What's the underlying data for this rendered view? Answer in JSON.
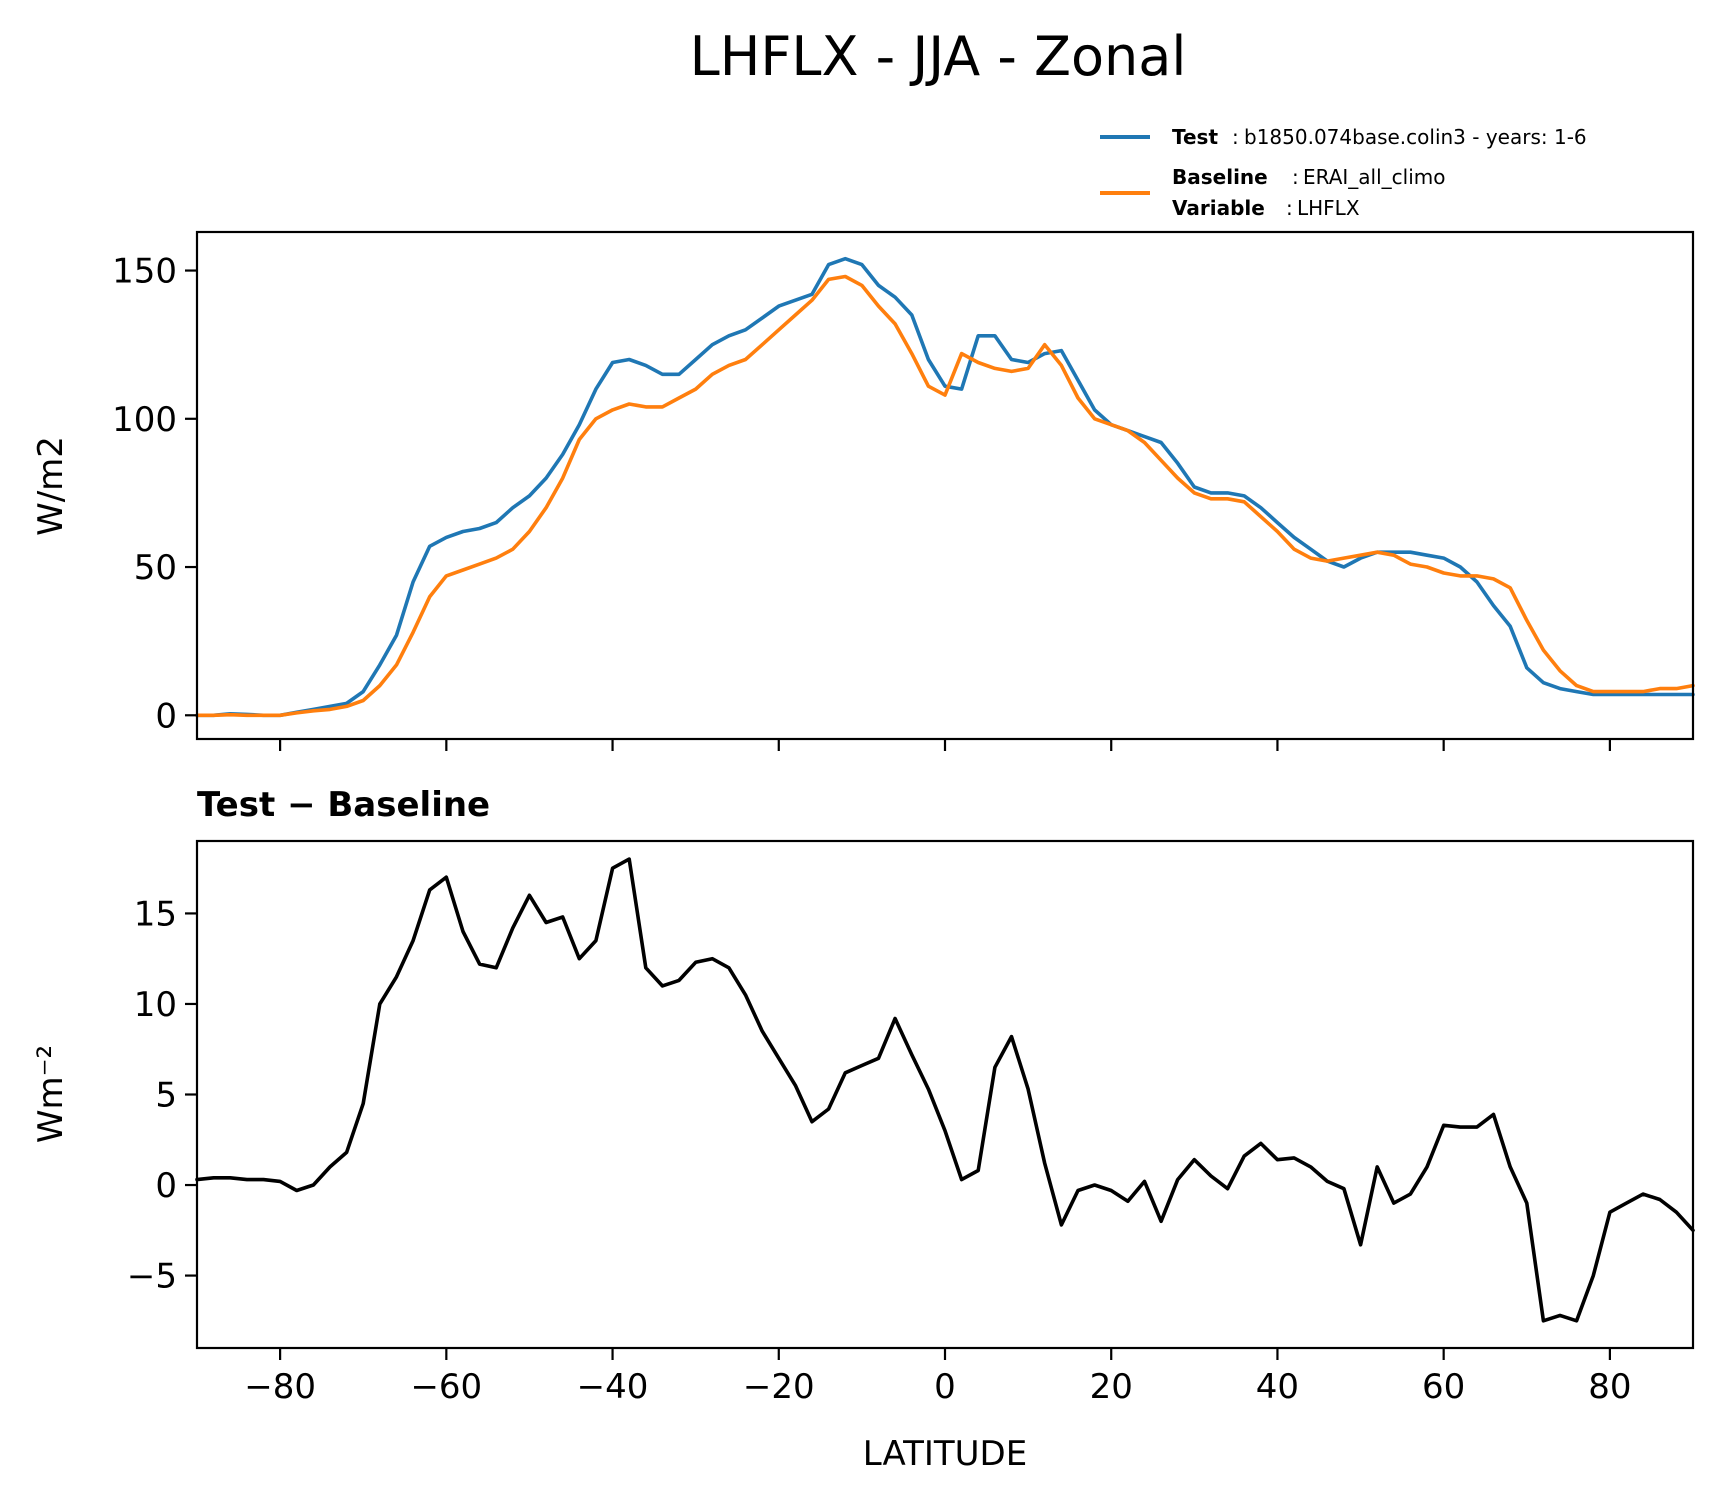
{
  "figure_title": "LHFLX - JJA - Zonal",
  "legend": {
    "test": {
      "key": "Test",
      "value": "b1850.074base.colin3 - years: 1-6"
    },
    "baseline": {
      "key": "Baseline",
      "value": "ERAI_all_climo"
    },
    "variable": {
      "key": "Variable",
      "value": "LHFLX"
    }
  },
  "colors": {
    "test": "#1f77b4",
    "baseline": "#ff7f0e",
    "diff": "#000000"
  },
  "chart_data": [
    {
      "type": "line",
      "title": "",
      "xlabel": "",
      "ylabel": "W/m2",
      "xlim": [
        -90,
        90
      ],
      "ylim": [
        -8,
        163
      ],
      "yticks": [
        0,
        50,
        100,
        150
      ],
      "xticks": [
        -80,
        -60,
        -40,
        -20,
        0,
        20,
        40,
        60,
        80
      ],
      "show_xticklabels": false,
      "grid": false,
      "legend_position": "above-right",
      "series": [
        {
          "name": "Test",
          "color": "#1f77b4",
          "x": [
            -90,
            -88,
            -86,
            -84,
            -82,
            -80,
            -78,
            -76,
            -74,
            -72,
            -70,
            -68,
            -66,
            -64,
            -62,
            -60,
            -58,
            -56,
            -54,
            -52,
            -50,
            -48,
            -46,
            -44,
            -42,
            -40,
            -38,
            -36,
            -34,
            -32,
            -30,
            -28,
            -26,
            -24,
            -22,
            -20,
            -18,
            -16,
            -14,
            -12,
            -10,
            -8,
            -6,
            -4,
            -2,
            0,
            2,
            4,
            6,
            8,
            10,
            12,
            14,
            16,
            18,
            20,
            22,
            24,
            26,
            28,
            30,
            32,
            34,
            36,
            38,
            40,
            42,
            44,
            46,
            48,
            50,
            52,
            54,
            56,
            58,
            60,
            62,
            64,
            66,
            68,
            70,
            72,
            74,
            76,
            78,
            80,
            82,
            84,
            86,
            88,
            90
          ],
          "y": [
            0,
            0,
            0.5,
            0.3,
            0,
            0,
            1,
            2,
            3,
            4,
            8,
            17,
            27,
            45,
            57,
            60,
            62,
            63,
            65,
            70,
            74,
            80,
            88,
            98,
            110,
            119,
            120,
            118,
            115,
            115,
            120,
            125,
            128,
            130,
            134,
            138,
            140,
            142,
            152,
            154,
            152,
            145,
            141,
            135,
            120,
            111,
            110,
            128,
            128,
            120,
            119,
            122,
            123,
            113,
            103,
            98,
            96,
            94,
            92,
            85,
            77,
            75,
            75,
            74,
            70,
            65,
            60,
            56,
            52,
            50,
            53,
            55,
            55,
            55,
            54,
            53,
            50,
            45,
            37,
            30,
            16,
            11,
            9,
            8,
            7,
            7,
            7,
            7,
            7,
            7,
            7
          ],
          "_note": ""
        },
        {
          "name": "Baseline",
          "color": "#ff7f0e",
          "x": [
            -90,
            -88,
            -86,
            -84,
            -82,
            -80,
            -78,
            -76,
            -74,
            -72,
            -70,
            -68,
            -66,
            -64,
            -62,
            -60,
            -58,
            -56,
            -54,
            -52,
            -50,
            -48,
            -46,
            -44,
            -42,
            -40,
            -38,
            -36,
            -34,
            -32,
            -30,
            -28,
            -26,
            -24,
            -22,
            -20,
            -18,
            -16,
            -14,
            -12,
            -10,
            -8,
            -6,
            -4,
            -2,
            0,
            2,
            4,
            6,
            8,
            10,
            12,
            14,
            16,
            18,
            20,
            22,
            24,
            26,
            28,
            30,
            32,
            34,
            36,
            38,
            40,
            42,
            44,
            46,
            48,
            50,
            52,
            54,
            56,
            58,
            60,
            62,
            64,
            66,
            68,
            70,
            72,
            74,
            76,
            78,
            80,
            82,
            84,
            86,
            88,
            90
          ],
          "y": [
            0,
            0,
            0.2,
            0,
            0,
            0,
            0.8,
            1.5,
            2,
            3,
            5,
            10,
            17,
            28,
            40,
            47,
            49,
            51,
            53,
            56,
            62,
            70,
            80,
            93,
            100,
            103,
            105,
            104,
            104,
            107,
            110,
            115,
            118,
            120,
            125,
            130,
            135,
            140,
            147,
            148,
            145,
            138,
            132,
            122,
            111,
            108,
            122,
            119,
            117,
            116,
            117,
            125,
            118,
            107,
            100,
            98,
            96,
            92,
            86,
            80,
            75,
            73,
            73,
            72,
            67,
            62,
            56,
            53,
            52,
            53,
            54,
            55,
            54,
            51,
            50,
            48,
            47,
            47,
            46,
            43,
            32,
            22,
            15,
            10,
            8,
            8,
            8,
            8,
            9,
            9,
            10
          ],
          "_note": ""
        }
      ]
    },
    {
      "type": "line",
      "title": "Test − Baseline",
      "xlabel": "LATITUDE",
      "ylabel": "Wm⁻²",
      "xlim": [
        -90,
        90
      ],
      "ylim": [
        -9,
        19
      ],
      "yticks": [
        -5,
        0,
        5,
        10,
        15
      ],
      "ytick_labels": [
        "−5",
        "0",
        "5",
        "10",
        "15"
      ],
      "xticks": [
        -80,
        -60,
        -40,
        -20,
        0,
        20,
        40,
        60,
        80
      ],
      "xtick_labels": [
        "−80",
        "−60",
        "−40",
        "−20",
        "0",
        "20",
        "40",
        "60",
        "80"
      ],
      "grid": false,
      "series": [
        {
          "color": "#000000",
          "x": [
            -90,
            -88,
            -86,
            -84,
            -82,
            -80,
            -78,
            -76,
            -74,
            -72,
            -70,
            -68,
            -66,
            -64,
            -62,
            -60,
            -58,
            -56,
            -54,
            -52,
            -50,
            -48,
            -46,
            -44,
            -42,
            -40,
            -38,
            -36,
            -34,
            -32,
            -30,
            -28,
            -26,
            -24,
            -22,
            -20,
            -18,
            -16,
            -14,
            -12,
            -10,
            -8,
            -6,
            -4,
            -2,
            0,
            2,
            4,
            6,
            8,
            10,
            12,
            14,
            16,
            18,
            20,
            22,
            24,
            26,
            28,
            30,
            32,
            34,
            36,
            38,
            40,
            42,
            44,
            46,
            48,
            50,
            52,
            54,
            56,
            58,
            60,
            62,
            64,
            66,
            68,
            70,
            72,
            74,
            76,
            78,
            80,
            82,
            84,
            86,
            88,
            90
          ],
          "y": [
            0.3,
            0.4,
            0.4,
            0.3,
            0.3,
            0.2,
            -0.3,
            0,
            1,
            1.8,
            4.5,
            10,
            11.5,
            13.5,
            16.3,
            17,
            14,
            12.2,
            12,
            14.2,
            16,
            14.5,
            14.8,
            12.5,
            13.5,
            17.5,
            18,
            12,
            11,
            11.3,
            12.3,
            12.5,
            12,
            10.5,
            8.5,
            7,
            5.5,
            3.5,
            4.2,
            6.2,
            6.6,
            7,
            9.2,
            7.2,
            5.3,
            3,
            0.3,
            0.8,
            6.5,
            8.2,
            5.3,
            1.2,
            -2.2,
            -0.3,
            0,
            -0.3,
            -0.9,
            0.2,
            -2,
            0.3,
            1.4,
            0.5,
            -0.2,
            1.6,
            2.3,
            1.4,
            1.5,
            1,
            0.2,
            -0.2,
            -3.3,
            1,
            -1,
            -0.5,
            1,
            3.3,
            3.2,
            3.2,
            3.9,
            1,
            -1,
            -7.5,
            -7.2,
            -7.5,
            -5,
            -1.5,
            -1,
            -0.5,
            -0.8,
            -1.5,
            -2.5
          ]
        }
      ]
    }
  ]
}
